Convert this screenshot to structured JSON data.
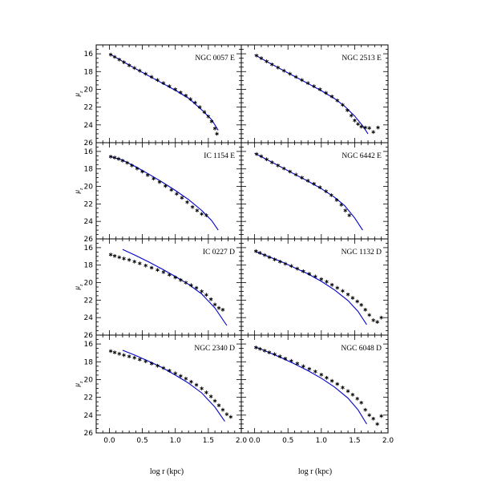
{
  "figure": {
    "xlabel": "log r (kpc)",
    "ylabel_main": "μ",
    "ylabel_sub": "z",
    "colors": {
      "model_line": "#0000cc",
      "data_points": "#000000"
    }
  },
  "chart_data": [
    {
      "type": "scatter",
      "title": "NGC 0057 E",
      "row": 0,
      "col": 0,
      "xlim": [
        -0.2,
        2.0
      ],
      "ylim": [
        26,
        15
      ],
      "xticks": [
        0.0,
        0.5,
        1.0,
        1.5,
        2.0
      ],
      "yticks": [
        16,
        18,
        20,
        22,
        24,
        26
      ],
      "series": [
        {
          "kind": "points",
          "x": [
            0.02,
            0.08,
            0.15,
            0.22,
            0.3,
            0.38,
            0.46,
            0.55,
            0.64,
            0.73,
            0.82,
            0.91,
            1.0,
            1.08,
            1.16,
            1.23,
            1.3,
            1.37,
            1.44,
            1.5,
            1.55,
            1.6,
            1.63
          ],
          "y": [
            16.1,
            16.35,
            16.65,
            16.95,
            17.3,
            17.6,
            17.9,
            18.25,
            18.6,
            18.95,
            19.3,
            19.65,
            20.0,
            20.35,
            20.7,
            21.1,
            21.5,
            22.0,
            22.55,
            23.05,
            23.6,
            24.4,
            25.0
          ]
        },
        {
          "kind": "model",
          "x": [
            0.0,
            0.2,
            0.4,
            0.6,
            0.8,
            1.0,
            1.2,
            1.4,
            1.55,
            1.65
          ],
          "y": [
            16.0,
            16.85,
            17.7,
            18.5,
            19.3,
            20.1,
            21.0,
            22.3,
            23.4,
            24.6
          ]
        }
      ]
    },
    {
      "type": "scatter",
      "title": "NGC 2513 E",
      "row": 0,
      "col": 1,
      "xlim": [
        -0.2,
        2.0
      ],
      "ylim": [
        26,
        15
      ],
      "xticks": [
        0.0,
        0.5,
        1.0,
        1.5,
        2.0
      ],
      "yticks": [
        16,
        18,
        20,
        22,
        24,
        26
      ],
      "series": [
        {
          "kind": "points",
          "x": [
            0.03,
            0.1,
            0.18,
            0.26,
            0.35,
            0.44,
            0.53,
            0.62,
            0.71,
            0.8,
            0.89,
            0.98,
            1.07,
            1.16,
            1.24,
            1.32,
            1.39,
            1.45,
            1.5,
            1.55,
            1.6,
            1.66,
            1.72,
            1.78,
            1.85
          ],
          "y": [
            16.2,
            16.5,
            16.85,
            17.2,
            17.55,
            17.9,
            18.25,
            18.6,
            18.95,
            19.3,
            19.65,
            20.0,
            20.4,
            20.8,
            21.25,
            21.75,
            22.35,
            22.95,
            23.5,
            23.9,
            24.2,
            24.3,
            24.35,
            24.8,
            24.3
          ]
        },
        {
          "kind": "model",
          "x": [
            0.0,
            0.2,
            0.4,
            0.6,
            0.8,
            1.0,
            1.2,
            1.35,
            1.5,
            1.62,
            1.7
          ],
          "y": [
            16.1,
            16.95,
            17.75,
            18.55,
            19.35,
            20.15,
            21.05,
            21.9,
            23.0,
            24.1,
            25.0
          ]
        }
      ]
    },
    {
      "type": "scatter",
      "title": "IC 1154 E",
      "row": 1,
      "col": 0,
      "xlim": [
        -0.2,
        2.0
      ],
      "ylim": [
        26,
        15
      ],
      "xticks": [
        0.0,
        0.5,
        1.0,
        1.5,
        2.0
      ],
      "yticks": [
        16,
        18,
        20,
        22,
        24,
        26
      ],
      "series": [
        {
          "kind": "points",
          "x": [
            0.02,
            0.08,
            0.14,
            0.2,
            0.27,
            0.34,
            0.42,
            0.5,
            0.58,
            0.67,
            0.76,
            0.85,
            0.94,
            1.02,
            1.1,
            1.18,
            1.26,
            1.33,
            1.4,
            1.47
          ],
          "y": [
            16.6,
            16.7,
            16.85,
            17.05,
            17.3,
            17.6,
            17.95,
            18.3,
            18.7,
            19.1,
            19.5,
            19.95,
            20.4,
            20.85,
            21.3,
            21.8,
            22.35,
            22.75,
            23.15,
            23.3
          ]
        },
        {
          "kind": "model",
          "x": [
            0.0,
            0.2,
            0.4,
            0.6,
            0.8,
            1.0,
            1.2,
            1.4,
            1.55,
            1.65
          ],
          "y": [
            16.55,
            17.0,
            17.75,
            18.6,
            19.5,
            20.45,
            21.5,
            22.75,
            23.9,
            25.0
          ]
        }
      ]
    },
    {
      "type": "scatter",
      "title": "NGC 6442 E",
      "row": 1,
      "col": 1,
      "xlim": [
        -0.2,
        2.0
      ],
      "ylim": [
        26,
        15
      ],
      "xticks": [
        0.0,
        0.5,
        1.0,
        1.5,
        2.0
      ],
      "yticks": [
        16,
        18,
        20,
        22,
        24,
        26
      ],
      "series": [
        {
          "kind": "points",
          "x": [
            0.03,
            0.1,
            0.18,
            0.26,
            0.35,
            0.44,
            0.53,
            0.62,
            0.71,
            0.8,
            0.89,
            0.98,
            1.07,
            1.15,
            1.23,
            1.3,
            1.36,
            1.42
          ],
          "y": [
            16.3,
            16.55,
            16.9,
            17.25,
            17.6,
            17.95,
            18.3,
            18.65,
            19.0,
            19.35,
            19.7,
            20.1,
            20.55,
            21.0,
            21.55,
            22.1,
            22.75,
            23.3
          ]
        },
        {
          "kind": "model",
          "x": [
            0.0,
            0.2,
            0.4,
            0.6,
            0.8,
            1.0,
            1.2,
            1.35,
            1.5,
            1.62
          ],
          "y": [
            16.2,
            17.0,
            17.8,
            18.6,
            19.4,
            20.25,
            21.25,
            22.2,
            23.6,
            25.0
          ]
        }
      ]
    },
    {
      "type": "scatter",
      "title": "IC 0227 D",
      "row": 2,
      "col": 0,
      "xlim": [
        -0.2,
        2.0
      ],
      "ylim": [
        26,
        15
      ],
      "xticks": [
        0.0,
        0.5,
        1.0,
        1.5,
        2.0
      ],
      "yticks": [
        16,
        18,
        20,
        22,
        24,
        26
      ],
      "series": [
        {
          "kind": "points",
          "x": [
            0.02,
            0.08,
            0.15,
            0.22,
            0.3,
            0.38,
            0.46,
            0.55,
            0.64,
            0.73,
            0.82,
            0.91,
            1.0,
            1.08,
            1.16,
            1.24,
            1.32,
            1.4,
            1.47,
            1.54,
            1.6,
            1.66,
            1.72
          ],
          "y": [
            16.8,
            16.95,
            17.1,
            17.25,
            17.4,
            17.6,
            17.8,
            18.05,
            18.3,
            18.55,
            18.8,
            19.1,
            19.4,
            19.7,
            20.0,
            20.3,
            20.6,
            21.0,
            21.4,
            21.9,
            22.5,
            22.9,
            23.1
          ]
        },
        {
          "kind": "model",
          "x": [
            0.2,
            0.4,
            0.6,
            0.8,
            1.0,
            1.2,
            1.4,
            1.6,
            1.78
          ],
          "y": [
            16.2,
            16.9,
            17.65,
            18.45,
            19.3,
            20.2,
            21.3,
            22.9,
            24.9
          ]
        }
      ]
    },
    {
      "type": "scatter",
      "title": "NGC 1132 D",
      "row": 2,
      "col": 1,
      "xlim": [
        -0.2,
        2.0
      ],
      "ylim": [
        26,
        15
      ],
      "xticks": [
        0.0,
        0.5,
        1.0,
        1.5,
        2.0
      ],
      "yticks": [
        16,
        18,
        20,
        22,
        24,
        26
      ],
      "series": [
        {
          "kind": "points",
          "x": [
            0.02,
            0.08,
            0.15,
            0.22,
            0.3,
            0.38,
            0.46,
            0.55,
            0.64,
            0.73,
            0.82,
            0.91,
            1.0,
            1.08,
            1.16,
            1.24,
            1.32,
            1.4,
            1.47,
            1.54,
            1.6,
            1.66,
            1.72,
            1.78,
            1.84,
            1.9
          ],
          "y": [
            16.4,
            16.6,
            16.85,
            17.1,
            17.35,
            17.6,
            17.85,
            18.1,
            18.4,
            18.7,
            19.0,
            19.3,
            19.6,
            19.9,
            20.25,
            20.6,
            20.95,
            21.35,
            21.75,
            22.15,
            22.55,
            23.1,
            23.7,
            24.3,
            24.5,
            24.0
          ]
        },
        {
          "kind": "model",
          "x": [
            0.0,
            0.2,
            0.4,
            0.6,
            0.8,
            1.0,
            1.2,
            1.4,
            1.55,
            1.68
          ],
          "y": [
            16.4,
            17.0,
            17.6,
            18.3,
            19.0,
            19.85,
            20.85,
            22.05,
            23.3,
            24.8
          ]
        }
      ]
    },
    {
      "type": "scatter",
      "title": "NGC 2340 D",
      "row": 3,
      "col": 0,
      "xlim": [
        -0.2,
        2.0
      ],
      "ylim": [
        26,
        15
      ],
      "xticks": [
        0.0,
        0.5,
        1.0,
        1.5,
        2.0
      ],
      "yticks": [
        16,
        18,
        20,
        22,
        24,
        26
      ],
      "series": [
        {
          "kind": "points",
          "x": [
            0.02,
            0.08,
            0.15,
            0.22,
            0.3,
            0.38,
            0.46,
            0.55,
            0.64,
            0.73,
            0.82,
            0.91,
            1.0,
            1.08,
            1.16,
            1.24,
            1.32,
            1.4,
            1.47,
            1.54,
            1.6,
            1.66,
            1.72,
            1.78,
            1.84
          ],
          "y": [
            16.8,
            16.95,
            17.1,
            17.25,
            17.4,
            17.55,
            17.75,
            17.95,
            18.2,
            18.45,
            18.7,
            19.0,
            19.3,
            19.6,
            19.9,
            20.25,
            20.6,
            21.0,
            21.45,
            21.9,
            22.4,
            22.9,
            23.4,
            23.9,
            24.2
          ]
        },
        {
          "kind": "model",
          "x": [
            0.2,
            0.4,
            0.6,
            0.8,
            1.0,
            1.2,
            1.4,
            1.6,
            1.75
          ],
          "y": [
            16.7,
            17.3,
            17.95,
            18.65,
            19.5,
            20.4,
            21.5,
            23.1,
            24.7
          ]
        }
      ]
    },
    {
      "type": "scatter",
      "title": "NGC 6048 D",
      "row": 3,
      "col": 1,
      "xlim": [
        -0.2,
        2.0
      ],
      "ylim": [
        26,
        15
      ],
      "xticks": [
        0.0,
        0.5,
        1.0,
        1.5,
        2.0
      ],
      "yticks": [
        16,
        18,
        20,
        22,
        24,
        26
      ],
      "series": [
        {
          "kind": "points",
          "x": [
            0.02,
            0.08,
            0.15,
            0.22,
            0.3,
            0.38,
            0.46,
            0.55,
            0.64,
            0.73,
            0.82,
            0.91,
            1.0,
            1.08,
            1.16,
            1.24,
            1.32,
            1.4,
            1.47,
            1.54,
            1.6,
            1.66,
            1.72,
            1.78,
            1.84,
            1.9
          ],
          "y": [
            16.4,
            16.55,
            16.75,
            16.95,
            17.15,
            17.4,
            17.65,
            17.9,
            18.2,
            18.5,
            18.8,
            19.1,
            19.45,
            19.8,
            20.15,
            20.5,
            20.9,
            21.3,
            21.7,
            22.15,
            22.6,
            23.4,
            24.0,
            24.4,
            25.0,
            24.1
          ]
        },
        {
          "kind": "model",
          "x": [
            0.0,
            0.2,
            0.4,
            0.6,
            0.8,
            1.0,
            1.2,
            1.4,
            1.55,
            1.68
          ],
          "y": [
            16.3,
            16.9,
            17.55,
            18.25,
            19.0,
            19.85,
            20.85,
            22.1,
            23.4,
            25.0
          ]
        }
      ]
    }
  ]
}
